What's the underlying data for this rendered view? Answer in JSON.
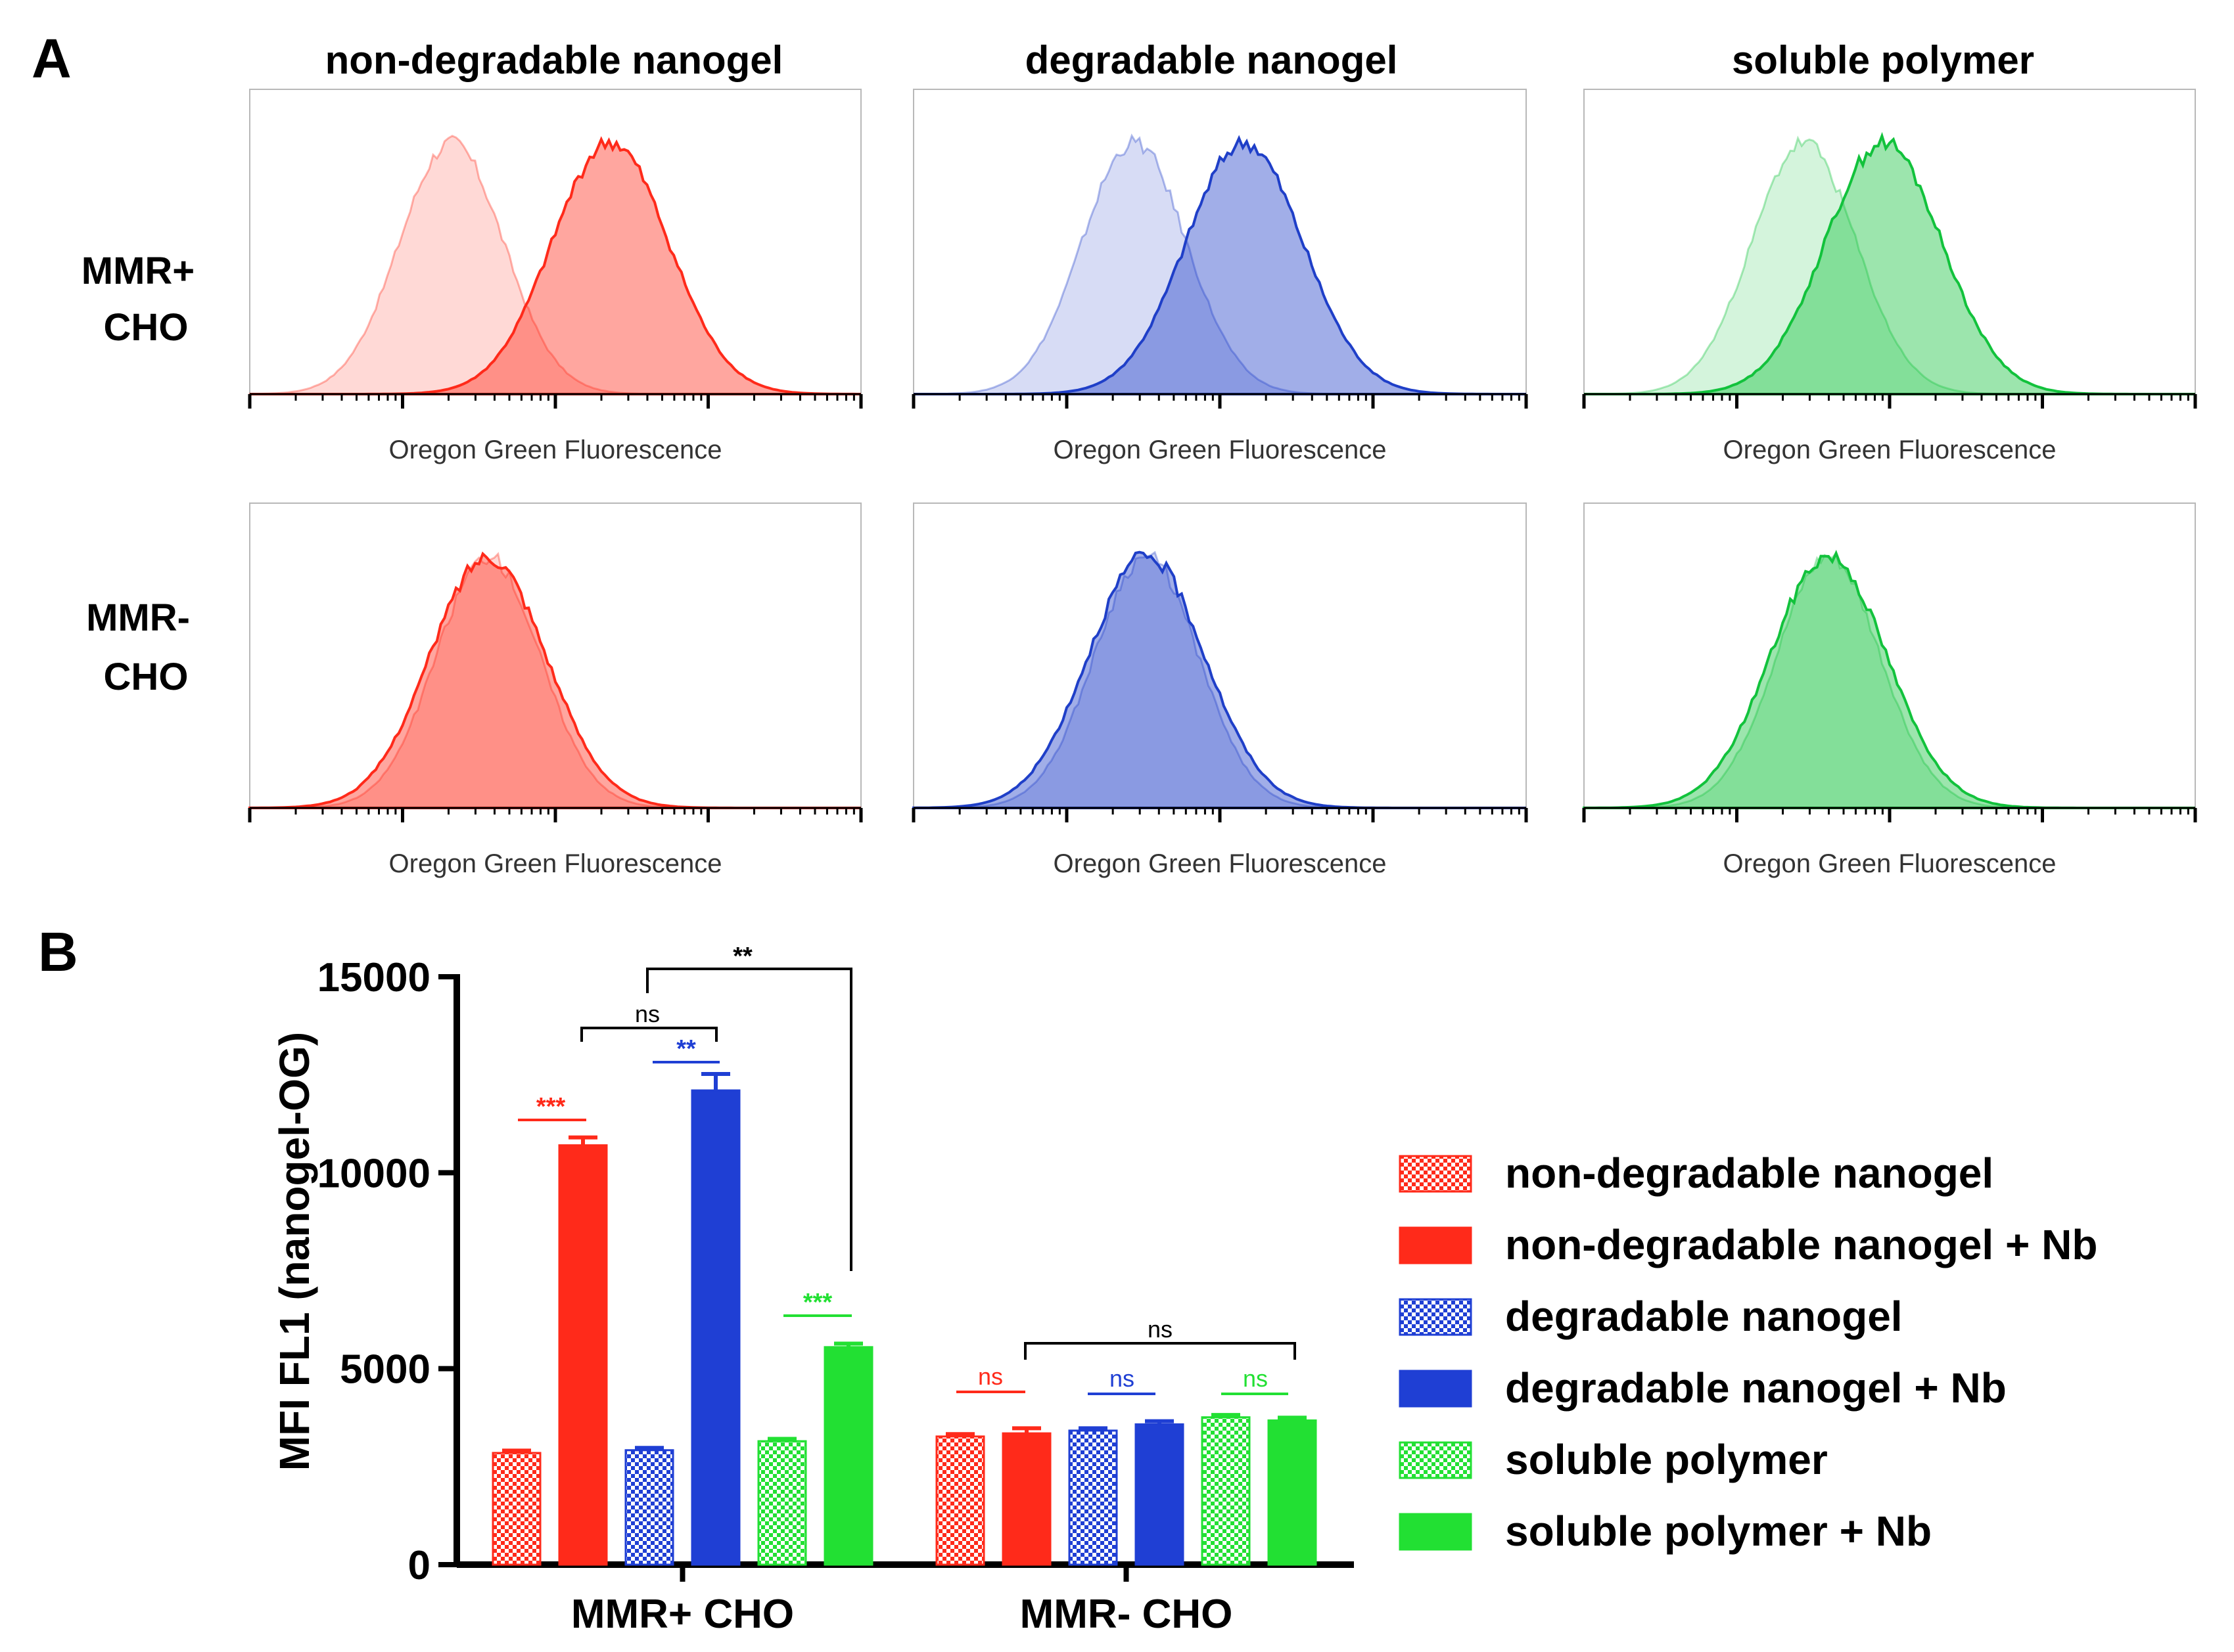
{
  "panel_a": {
    "label": "A",
    "column_titles": [
      "non-degradable nanogel",
      "degradable nanogel",
      "soluble polymer"
    ],
    "row_labels": [
      [
        "MMR+",
        "CHO"
      ],
      [
        "MMR-",
        "CHO"
      ]
    ],
    "axis_label": "Oregon Green Fluorescence"
  },
  "panel_b": {
    "label": "B",
    "significance": {
      "top_bracket": "**",
      "mid_bracket": "ns",
      "nondeg_pair": "***",
      "deg_pair": "**",
      "sol_pair": "***",
      "mmrneg_bracket": "ns",
      "mmrneg_nondeg": "ns",
      "mmrneg_deg": "ns",
      "mmrneg_sol": "ns"
    }
  },
  "chart_data": [
    {
      "type": "area",
      "kind": "flow-cytometry-histograms",
      "x_axis": "log",
      "xlabel": "Oregon Green Fluorescence",
      "panels": [
        {
          "row": "MMR+ CHO",
          "column": "non-degradable nanogel",
          "color": "#ff2a1a",
          "control_peak": 0.33,
          "sample_peak": 0.59,
          "note": "sample shifted right of control"
        },
        {
          "row": "MMR+ CHO",
          "column": "degradable nanogel",
          "color": "#1f3fc8",
          "control_peak": 0.36,
          "sample_peak": 0.54,
          "note": "sample shifted right of control"
        },
        {
          "row": "MMR+ CHO",
          "column": "soluble polymer",
          "color": "#12c23c",
          "control_peak": 0.36,
          "sample_peak": 0.49,
          "note": "sample shifted right of control"
        },
        {
          "row": "MMR- CHO",
          "column": "non-degradable nanogel",
          "color": "#ff2a1a",
          "control_peak": 0.39,
          "sample_peak": 0.39,
          "note": "overlapping"
        },
        {
          "row": "MMR- CHO",
          "column": "degradable nanogel",
          "color": "#1f3fc8",
          "control_peak": 0.38,
          "sample_peak": 0.38,
          "note": "overlapping"
        },
        {
          "row": "MMR- CHO",
          "column": "soluble polymer",
          "color": "#12c23c",
          "control_peak": 0.4,
          "sample_peak": 0.4,
          "note": "overlapping"
        }
      ]
    },
    {
      "type": "bar",
      "title": "",
      "xlabel": "",
      "ylabel": "MFI FL1 (nanogel-OG)",
      "ylim": [
        0,
        15000
      ],
      "yticks": [
        0,
        5000,
        10000,
        15000
      ],
      "categories": [
        "MMR+ CHO",
        "MMR- CHO"
      ],
      "series": [
        {
          "name": "non-degradable nanogel",
          "color": "#ff2a1a",
          "pattern": true,
          "values": [
            2850,
            3270
          ],
          "errors": [
            60,
            60
          ]
        },
        {
          "name": "non-degradable nanogel + Nb",
          "color": "#ff2a1a",
          "pattern": false,
          "values": [
            10700,
            3350
          ],
          "errors": [
            200,
            130
          ]
        },
        {
          "name": "degradable nanogel",
          "color": "#1f3fd4",
          "pattern": true,
          "values": [
            2920,
            3420
          ],
          "errors": [
            60,
            60
          ]
        },
        {
          "name": "degradable nanogel + Nb",
          "color": "#1f3fd4",
          "pattern": false,
          "values": [
            12100,
            3580
          ],
          "errors": [
            420,
            80
          ]
        },
        {
          "name": "soluble polymer",
          "color": "#22e033",
          "pattern": true,
          "values": [
            3150,
            3760
          ],
          "errors": [
            60,
            60
          ]
        },
        {
          "name": "soluble polymer + Nb",
          "color": "#22e033",
          "pattern": false,
          "values": [
            5550,
            3680
          ],
          "errors": [
            90,
            70
          ]
        }
      ]
    }
  ]
}
